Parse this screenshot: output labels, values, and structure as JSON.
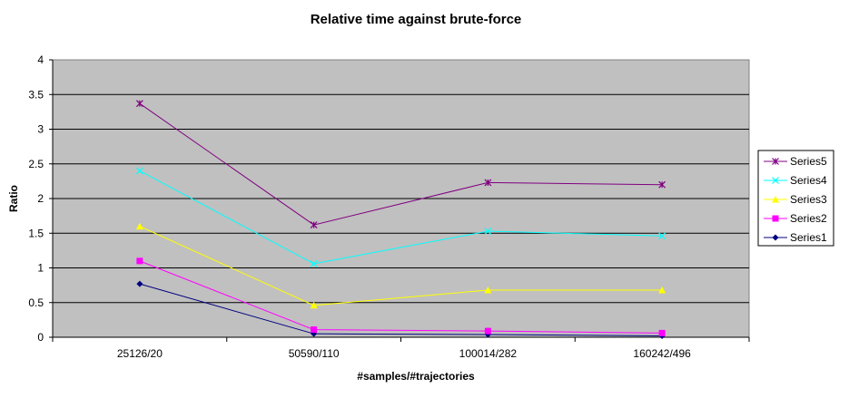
{
  "chart_data": {
    "type": "line",
    "title": "Relative time against brute-force",
    "xlabel": "#samples/#trajectories",
    "ylabel": "Ratio",
    "categories": [
      "25126/20",
      "50590/110",
      "100014/282",
      "160242/496"
    ],
    "ylim": [
      0,
      4
    ],
    "yticks": [
      "0",
      "0.5",
      "1",
      "1.5",
      "2",
      "2.5",
      "3",
      "3.5",
      "4"
    ],
    "grid": true,
    "legend_position": "right",
    "plot_background": "#c0c0c0",
    "series": [
      {
        "name": "Series1",
        "color": "#000080",
        "marker": "diamond",
        "values": [
          0.77,
          0.05,
          0.04,
          0.02
        ]
      },
      {
        "name": "Series2",
        "color": "#ff00ff",
        "marker": "square",
        "values": [
          1.1,
          0.11,
          0.09,
          0.06
        ]
      },
      {
        "name": "Series3",
        "color": "#ffff00",
        "marker": "triangle",
        "values": [
          1.6,
          0.46,
          0.68,
          0.68
        ]
      },
      {
        "name": "Series4",
        "color": "#00ffff",
        "marker": "x",
        "values": [
          2.4,
          1.06,
          1.53,
          1.46
        ]
      },
      {
        "name": "Series5",
        "color": "#800080",
        "marker": "star",
        "values": [
          3.37,
          1.62,
          2.23,
          2.2
        ]
      }
    ]
  }
}
